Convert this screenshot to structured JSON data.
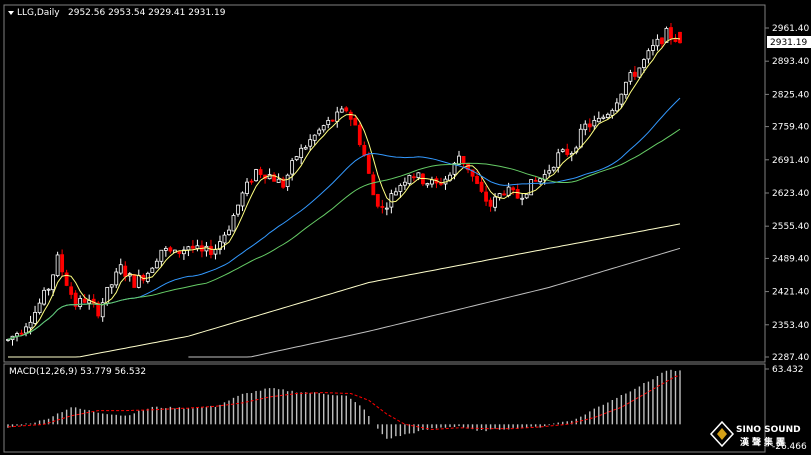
{
  "header": {
    "symbol": "LLG,Daily",
    "ohlc": "2952.56 2953.54 2929.41 2931.19",
    "macd_label": "MACD(12,26,9) 53.779 56.532"
  },
  "logo": {
    "name": "SINO SOUND",
    "cjk": "漢聲集團"
  },
  "colors": {
    "background": "#000000",
    "bull": "#ffffff",
    "bear": "#ff0000",
    "grid_border": "#808080",
    "ma_fast": "#ffff80",
    "ma_blue": "#3399ff",
    "ma_green": "#66cc66",
    "ma_slow": "#ffffcc",
    "ma_slowest": "#c0c0c0",
    "macd_hist": "#c0c0c0",
    "macd_signal": "#ff0000",
    "current_price_bg": "#ffffff"
  },
  "chart_data": {
    "type": "candlestick",
    "price_axis": {
      "ticks": [
        "2961.40",
        "2893.40",
        "2825.40",
        "2759.40",
        "2691.40",
        "2623.40",
        "2555.40",
        "2489.40",
        "2421.40",
        "2353.40",
        "2287.40"
      ],
      "min": 2287.4,
      "max": 2961.4,
      "current_price": "2931.19"
    },
    "macd_axis": {
      "ticks": [
        "63.432",
        "-26.466"
      ],
      "max": 63.432,
      "min": -26.466
    },
    "candles_ohlc": [],
    "anchors": [
      [
        0,
        2322
      ],
      [
        3,
        2345
      ],
      [
        6,
        2380
      ],
      [
        9,
        2430
      ],
      [
        11,
        2488
      ],
      [
        13,
        2440
      ],
      [
        15,
        2395
      ],
      [
        17,
        2405
      ],
      [
        20,
        2382
      ],
      [
        22,
        2420
      ],
      [
        25,
        2470
      ],
      [
        28,
        2440
      ],
      [
        31,
        2462
      ],
      [
        34,
        2508
      ],
      [
        37,
        2498
      ],
      [
        40,
        2515
      ],
      [
        43,
        2500
      ],
      [
        46,
        2510
      ],
      [
        49,
        2555
      ],
      [
        52,
        2620
      ],
      [
        55,
        2670
      ],
      [
        58,
        2660
      ],
      [
        61,
        2640
      ],
      [
        64,
        2700
      ],
      [
        67,
        2730
      ],
      [
        70,
        2760
      ],
      [
        73,
        2780
      ],
      [
        75,
        2795
      ],
      [
        77,
        2760
      ],
      [
        79,
        2700
      ],
      [
        81,
        2620
      ],
      [
        83,
        2590
      ],
      [
        86,
        2630
      ],
      [
        89,
        2665
      ],
      [
        92,
        2650
      ],
      [
        95,
        2640
      ],
      [
        98,
        2660
      ],
      [
        100,
        2700
      ],
      [
        102,
        2675
      ],
      [
        105,
        2620
      ],
      [
        107,
        2598
      ],
      [
        110,
        2630
      ],
      [
        113,
        2615
      ],
      [
        116,
        2640
      ],
      [
        119,
        2660
      ],
      [
        122,
        2700
      ],
      [
        125,
        2710
      ],
      [
        128,
        2760
      ],
      [
        131,
        2770
      ],
      [
        134,
        2800
      ],
      [
        137,
        2850
      ],
      [
        140,
        2880
      ],
      [
        143,
        2920
      ],
      [
        146,
        2950
      ],
      [
        148,
        2940
      ],
      [
        149,
        2931
      ]
    ],
    "macd_hist": [
      [
        0,
        -4
      ],
      [
        8,
        5
      ],
      [
        14,
        20
      ],
      [
        20,
        14
      ],
      [
        26,
        10
      ],
      [
        32,
        20
      ],
      [
        40,
        19
      ],
      [
        46,
        21
      ],
      [
        52,
        35
      ],
      [
        58,
        42
      ],
      [
        64,
        38
      ],
      [
        70,
        36
      ],
      [
        75,
        33
      ],
      [
        79,
        18
      ],
      [
        81,
        0
      ],
      [
        84,
        -17
      ],
      [
        88,
        -12
      ],
      [
        94,
        -5
      ],
      [
        100,
        -2
      ],
      [
        104,
        -8
      ],
      [
        108,
        -6
      ],
      [
        114,
        -4
      ],
      [
        118,
        -3
      ],
      [
        122,
        2
      ],
      [
        126,
        6
      ],
      [
        130,
        18
      ],
      [
        136,
        34
      ],
      [
        142,
        50
      ],
      [
        146,
        63
      ],
      [
        149,
        62
      ]
    ],
    "macd_signal": [
      [
        0,
        -3
      ],
      [
        8,
        0
      ],
      [
        14,
        10
      ],
      [
        20,
        16
      ],
      [
        26,
        16
      ],
      [
        32,
        17
      ],
      [
        40,
        19
      ],
      [
        46,
        21
      ],
      [
        52,
        25
      ],
      [
        58,
        32
      ],
      [
        64,
        36
      ],
      [
        70,
        37
      ],
      [
        76,
        36
      ],
      [
        80,
        28
      ],
      [
        84,
        12
      ],
      [
        88,
        0
      ],
      [
        94,
        -6
      ],
      [
        100,
        -4
      ],
      [
        106,
        -5
      ],
      [
        112,
        -5
      ],
      [
        118,
        -3
      ],
      [
        124,
        0
      ],
      [
        130,
        8
      ],
      [
        136,
        20
      ],
      [
        142,
        38
      ],
      [
        148,
        56
      ],
      [
        149,
        56.5
      ]
    ]
  }
}
